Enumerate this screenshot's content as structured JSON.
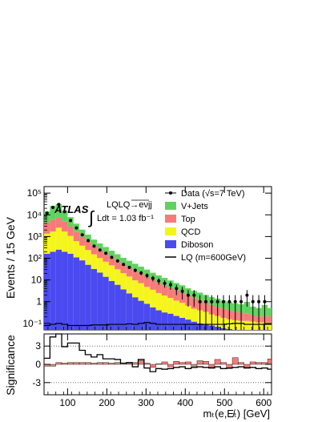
{
  "chart_data": [
    {
      "type": "area",
      "ylabel": "Events / 15 GeV",
      "log_y": true,
      "xlim": [
        40,
        620
      ],
      "ylim": [
        0.05,
        200000
      ],
      "y_ticks": [
        {
          "label": "10⁻¹",
          "value": 0.1
        },
        {
          "label": "1",
          "value": 1
        },
        {
          "label": "10",
          "value": 10
        },
        {
          "label": "10²",
          "value": 100
        },
        {
          "label": "10³",
          "value": 1000
        },
        {
          "label": "10⁴",
          "value": 10000
        },
        {
          "label": "10⁵",
          "value": 100000
        }
      ],
      "bin_edges": [
        40,
        55,
        70,
        85,
        100,
        115,
        130,
        145,
        160,
        175,
        190,
        205,
        220,
        235,
        250,
        265,
        280,
        295,
        310,
        325,
        340,
        355,
        370,
        385,
        400,
        415,
        430,
        445,
        460,
        475,
        490,
        505,
        520,
        535,
        550,
        565,
        580,
        595,
        610,
        620
      ],
      "stack_order_bottom_to_top": [
        "Diboson",
        "QCD",
        "Top",
        "V+Jets"
      ],
      "stack": [
        {
          "name": "Diboson",
          "color": "#4a4af0",
          "values": [
            160,
            200,
            250,
            200,
            160,
            110,
            80,
            50,
            32,
            22,
            14,
            9,
            6,
            3.7,
            2.4,
            1.6,
            1.1,
            0.8,
            0.55,
            0.4,
            0.32,
            0.28,
            0.22,
            0.18,
            0.15,
            0.12,
            0.1,
            0.09,
            0.08,
            0.07,
            0.06,
            0.055,
            0.05,
            0.05,
            0.05,
            0.05,
            0.05,
            0.05,
            0.05
          ]
        },
        {
          "name": "QCD",
          "color": "#f5f51e",
          "values": [
            1200,
            1500,
            2300,
            1500,
            900,
            500,
            300,
            190,
            120,
            80,
            55,
            38,
            25,
            17,
            12,
            8,
            6,
            4,
            3,
            2.1,
            1.6,
            1.2,
            0.9,
            0.7,
            0.5,
            0.35,
            0.3,
            0.25,
            0.18,
            0.15,
            0.12,
            0.1,
            0.09,
            0.08,
            0.08,
            0.07,
            0.06,
            0.06,
            0.06
          ]
        },
        {
          "name": "Top",
          "color": "#f97a7a",
          "values": [
            3000,
            4000,
            5000,
            3200,
            1800,
            1000,
            600,
            380,
            240,
            160,
            110,
            75,
            52,
            36,
            26,
            19,
            14,
            10,
            7,
            5.2,
            4,
            3,
            2.3,
            1.8,
            1.3,
            1,
            0.8,
            0.6,
            0.45,
            0.35,
            0.3,
            0.25,
            0.2,
            0.18,
            0.15,
            0.12,
            0.1,
            0.1,
            0.1
          ]
        },
        {
          "name": "V+Jets",
          "color": "#5fd35f",
          "values": [
            10000,
            20000,
            24000,
            11000,
            5000,
            2300,
            1100,
            600,
            330,
            220,
            150,
            100,
            70,
            48,
            36,
            27,
            20,
            15,
            11,
            8.5,
            6.5,
            5,
            3.8,
            3,
            2.2,
            1.7,
            1.4,
            1.1,
            0.9,
            0.8,
            0.65,
            0.55,
            0.5,
            0.45,
            0.7,
            0.35,
            0.3,
            0.5,
            0.3
          ]
        }
      ],
      "data_series": {
        "name": "Data (√s=7 TeV)",
        "x": [
          47.5,
          62.5,
          77.5,
          92.5,
          107.5,
          122.5,
          137.5,
          152.5,
          167.5,
          182.5,
          197.5,
          212.5,
          227.5,
          242.5,
          257.5,
          272.5,
          287.5,
          302.5,
          317.5,
          332.5,
          347.5,
          362.5,
          377.5,
          392.5,
          407.5,
          422.5,
          437.5,
          452.5,
          467.5,
          482.5,
          497.5,
          512.5,
          527.5,
          542.5,
          557.5,
          572.5,
          587.5,
          602.5
        ],
        "y": [
          12000,
          22000,
          30000,
          14000,
          5500,
          2500,
          1200,
          650,
          360,
          240,
          170,
          110,
          75,
          52,
          38,
          28,
          21,
          16,
          12,
          9,
          7,
          6,
          4,
          3,
          2,
          2,
          1,
          1,
          1,
          1,
          1,
          1,
          1,
          1,
          2,
          1,
          1,
          1
        ]
      },
      "lq_series": {
        "name": "LQ (m=600GeV)",
        "values": [
          0.08,
          0.09,
          0.1,
          0.09,
          0.08,
          0.08,
          0.08,
          0.08,
          0.085,
          0.085,
          0.085,
          0.09,
          0.09,
          0.09,
          0.095,
          0.09,
          0.1,
          0.11,
          0.1,
          0.09,
          0.09,
          0.09,
          0.09,
          0.09,
          0.09,
          0.09,
          0.09,
          0.09,
          0.09,
          0.09,
          0.09,
          0.095,
          0.1,
          0.1,
          0.09,
          0.09,
          0.09,
          0.09,
          0.09
        ]
      },
      "legend": {
        "placement": "top-right",
        "entries": [
          {
            "label": "Data (√s=7 TeV)",
            "kind": "marker"
          },
          {
            "label": "V+Jets",
            "kind": "fill",
            "color": "#5fd35f"
          },
          {
            "label": "Top",
            "kind": "fill",
            "color": "#f97a7a"
          },
          {
            "label": "QCD",
            "kind": "fill",
            "color": "#f5f51e"
          },
          {
            "label": "Diboson",
            "kind": "fill",
            "color": "#4a4af0"
          },
          {
            "label": "LQ (m=600GeV)",
            "kind": "line"
          }
        ]
      },
      "annotations": {
        "atlas": "ATLAS",
        "channel": "LQLQ→eνjj",
        "lumi_integral": "∫",
        "lumi": "Ldt = 1.03 fb⁻¹"
      }
    },
    {
      "type": "bar",
      "ylabel": "Significance",
      "xlabel": "mₜ(e,E̸ₜ) [GeV]",
      "xlim": [
        40,
        620
      ],
      "ylim": [
        -5,
        5
      ],
      "x_ticks": [
        {
          "label": "100",
          "value": 100
        },
        {
          "label": "200",
          "value": 200
        },
        {
          "label": "300",
          "value": 300
        },
        {
          "label": "400",
          "value": 400
        },
        {
          "label": "500",
          "value": 500
        },
        {
          "label": "600",
          "value": 600
        }
      ],
      "y_ticks": [
        {
          "label": "3",
          "value": 3
        },
        {
          "label": "0",
          "value": 0
        },
        {
          "label": "-3",
          "value": -3
        }
      ],
      "reference_lines": [
        3,
        -3
      ],
      "background_color": "#f97a7a",
      "bin_edges": [
        40,
        55,
        70,
        85,
        100,
        115,
        130,
        145,
        160,
        175,
        190,
        205,
        220,
        235,
        250,
        265,
        280,
        295,
        310,
        325,
        340,
        355,
        370,
        385,
        400,
        415,
        430,
        445,
        460,
        475,
        490,
        505,
        520,
        535,
        550,
        565,
        580,
        595,
        610,
        620
      ],
      "significance_values": [
        -0.3,
        -0.3,
        0.3,
        0.2,
        0.3,
        0.3,
        0.3,
        0.3,
        0.2,
        0.3,
        0.3,
        0.2,
        0.3,
        0.2,
        0.2,
        0.3,
        0.6,
        0.2,
        -0.5,
        0.1,
        0.4,
        -0.4,
        0.5,
        0.3,
        0.4,
        -0.3,
        0.6,
        0.5,
        -0.5,
        0.8,
        0.3,
        -0.7,
        1.1,
        0.3,
        -0.5,
        0.4,
        0.3,
        0.3,
        0.9
      ],
      "lq_significance_values": [
        1,
        4.5,
        5.2,
        2.9,
        3.5,
        3.5,
        2.3,
        1.6,
        1.2,
        1.6,
        0.9,
        0.9,
        0.8,
        0.2,
        0.3,
        -0.4,
        0.8,
        -0.6,
        -1.2,
        -0.7,
        -0.8,
        -0.7,
        -0.5,
        -0.4,
        -0.7,
        -0.5,
        -0.4,
        -0.5,
        -0.6,
        -0.4,
        -0.7,
        -0.6,
        -0.5,
        -0.4,
        -0.6,
        -0.5,
        -0.7,
        -0.6,
        -0.8
      ]
    }
  ]
}
